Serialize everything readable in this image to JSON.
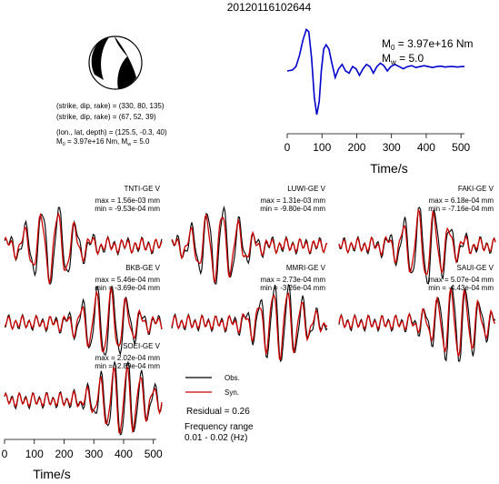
{
  "figure": {
    "title": "20120116102644"
  },
  "source_info": {
    "line1": "(strike, dip, rake) = (330, 80, 135)",
    "line2": "(strike, dip, rake) = (67, 52, 39)",
    "line3": "(lon., lat, depth) = (125.5, -0.3, 40)",
    "line4_prefix": "M",
    "line4_sub": "0",
    "line4_rest": " = 3.97e+16 Nm, M",
    "line4_sub2": "w",
    "line4_end": " = 5.0"
  },
  "stf": {
    "m0_prefix": "M",
    "m0_sub": "0",
    "m0_rest": " = 3.97e+16 Nm",
    "mw_prefix": "M",
    "mw_sub": "w",
    "mw_rest": " = 5.0",
    "xlabel": "Time/s",
    "color": "#0000cc"
  },
  "waveform_axis": {
    "xlabel": "Time/s"
  },
  "legend": {
    "obs_label": "Obs.",
    "syn_label": "Syn.",
    "obs_color": "#000000",
    "syn_color": "#cc0000",
    "residual": "Residual = 0.26",
    "freq_title": "Frequency range",
    "freq_value": "0.01 - 0.02 (Hz)"
  },
  "chart_data": [
    {
      "type": "line",
      "name": "source-time-function",
      "xlim": [
        0,
        510
      ],
      "xticks": [
        0,
        100,
        200,
        300,
        400,
        500
      ],
      "xlabel": "Time/s",
      "series": [
        {
          "color": "#0000cc",
          "x": [
            0,
            15,
            25,
            35,
            45,
            55,
            62,
            70,
            78,
            85,
            92,
            98,
            105,
            112,
            120,
            128,
            138,
            148,
            158,
            168,
            178,
            188,
            198,
            208,
            218,
            228,
            238,
            248,
            258,
            268,
            278,
            288,
            298,
            310,
            322,
            334,
            346,
            358,
            370,
            382,
            394,
            406,
            418,
            430,
            442,
            454,
            466,
            478,
            490,
            500,
            510
          ],
          "y": [
            0.0,
            0.02,
            0.1,
            0.35,
            0.7,
            0.95,
            0.9,
            0.3,
            -0.6,
            -1.0,
            -0.7,
            0.0,
            0.5,
            0.6,
            0.5,
            0.2,
            -0.15,
            0.05,
            0.15,
            0.0,
            -0.05,
            0.1,
            0.05,
            -0.1,
            0.05,
            0.15,
            0.1,
            -0.05,
            0.1,
            0.18,
            0.12,
            0.0,
            0.1,
            0.15,
            0.1,
            0.05,
            0.1,
            0.12,
            0.08,
            0.1,
            0.12,
            0.1,
            0.08,
            0.1,
            0.11,
            0.09,
            0.1,
            0.1,
            0.09,
            0.1,
            0.1
          ]
        }
      ]
    },
    {
      "type": "line",
      "name": "waveform-fits",
      "xlim": [
        0,
        510
      ],
      "xticks": [
        0,
        100,
        200,
        300,
        400,
        500
      ],
      "xlabel": "Time/s",
      "stations": [
        {
          "name": "TNTI-GE V",
          "max": "max = 1.56e-03 mm",
          "min": "min = -9.53e-04 mm"
        },
        {
          "name": "LUWI-GE V",
          "max": "max = 1.31e-03 mm",
          "min": "min = -9.80e-04 mm"
        },
        {
          "name": "FAKI-GE V",
          "max": "max = 6.18e-04 mm",
          "min": "min = -7.16e-04 mm"
        },
        {
          "name": "BKB-GE V",
          "max": "max = 5.46e-04 mm",
          "min": "min = -3.69e-04 mm"
        },
        {
          "name": "MMRI-GE V",
          "max": "max = 2.73e-04 mm",
          "min": "min = -3.26e-04 mm"
        },
        {
          "name": "SAUI-GE V",
          "max": "max = 5.07e-04 mm",
          "min": "min = -4.43e-04 mm"
        },
        {
          "name": "SOEI-GE V",
          "max": "max = 2.02e-04 mm",
          "min": "min = -2.89e-04 mm"
        }
      ]
    }
  ]
}
